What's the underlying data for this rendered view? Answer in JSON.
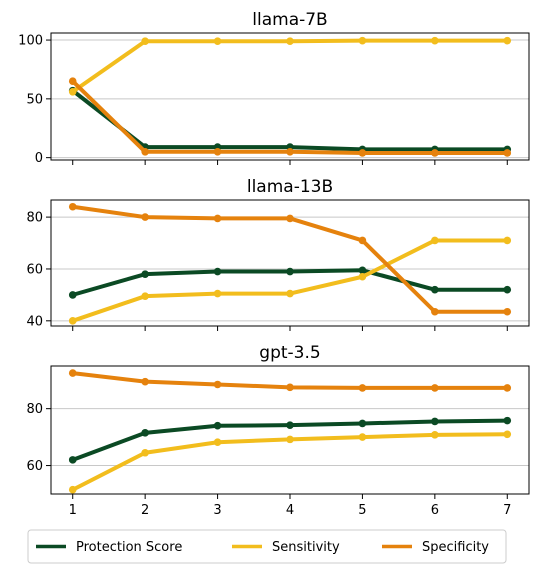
{
  "colors": {
    "protection": "#0b4a24",
    "sensitivity": "#f2bd1d",
    "specificity": "#e5820d",
    "grid": "#c8c8c8"
  },
  "legend": {
    "protection": "Protection Score",
    "sensitivity": "Sensitivity",
    "specificity": "Specificity"
  },
  "chart_data": [
    {
      "type": "line",
      "title": "llama-7B",
      "x": [
        1,
        2,
        3,
        4,
        5,
        6,
        7
      ],
      "xticks": [
        "1",
        "2",
        "3",
        "4",
        "5",
        "6",
        "7"
      ],
      "ylim": [
        -2,
        106
      ],
      "yticks": [
        "0",
        "50",
        "100"
      ],
      "grid": "horizontal",
      "series": [
        {
          "name": "Protection Score",
          "key": "protection",
          "values": [
            57,
            9,
            9,
            9,
            7,
            7,
            7
          ]
        },
        {
          "name": "Sensitivity",
          "key": "sensitivity",
          "values": [
            56,
            99,
            99,
            99,
            99.5,
            99.5,
            99.5
          ]
        },
        {
          "name": "Specificity",
          "key": "specificity",
          "values": [
            65,
            5,
            5,
            5,
            4,
            4,
            4
          ]
        }
      ]
    },
    {
      "type": "line",
      "title": "llama-13B",
      "x": [
        1,
        2,
        3,
        4,
        5,
        6,
        7
      ],
      "xticks": [
        "1",
        "2",
        "3",
        "4",
        "5",
        "6",
        "7"
      ],
      "ylim": [
        38,
        86.6
      ],
      "yticks": [
        "40",
        "60",
        "80"
      ],
      "grid": "horizontal",
      "series": [
        {
          "name": "Protection Score",
          "key": "protection",
          "values": [
            50,
            58,
            59,
            59,
            59.5,
            52,
            52
          ]
        },
        {
          "name": "Sensitivity",
          "key": "sensitivity",
          "values": [
            40,
            49.5,
            50.5,
            50.5,
            57,
            71,
            71
          ]
        },
        {
          "name": "Specificity",
          "key": "specificity",
          "values": [
            84,
            80,
            79.5,
            79.5,
            71,
            43.5,
            43.5
          ]
        }
      ]
    },
    {
      "type": "line",
      "title": "gpt-3.5",
      "x": [
        1,
        2,
        3,
        4,
        5,
        6,
        7
      ],
      "xticks": [
        "1",
        "2",
        "3",
        "4",
        "5",
        "6",
        "7"
      ],
      "ylim": [
        50,
        95
      ],
      "yticks": [
        "60",
        "80"
      ],
      "grid": "horizontal",
      "series": [
        {
          "name": "Protection Score",
          "key": "protection",
          "values": [
            62,
            71.5,
            74,
            74.2,
            74.8,
            75.5,
            75.8
          ]
        },
        {
          "name": "Sensitivity",
          "key": "sensitivity",
          "values": [
            51.5,
            64.5,
            68.2,
            69.2,
            70,
            70.8,
            71
          ]
        },
        {
          "name": "Specificity",
          "key": "specificity",
          "values": [
            92.5,
            89.5,
            88.5,
            87.5,
            87.3,
            87.3,
            87.3
          ]
        }
      ]
    }
  ]
}
